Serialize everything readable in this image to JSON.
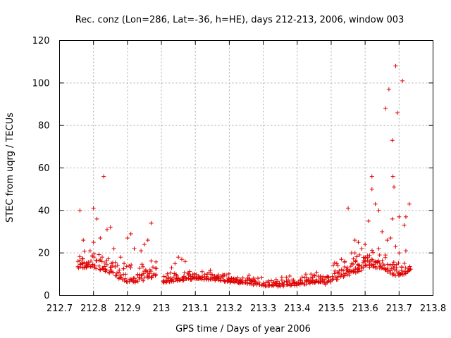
{
  "chart_data": {
    "type": "scatter",
    "title": "Rec. conz (Lon=286, Lat=-36, h=HE), days 212-213, 2006, window 003",
    "xlabel": "GPS time / Days of year 2006",
    "ylabel": "STEC from uqrg / TECUs",
    "xlim": [
      212.7,
      213.8
    ],
    "ylim": [
      0,
      120
    ],
    "xticks": [
      "212.7",
      "212.8",
      "212.9",
      "213",
      "213.1",
      "213.2",
      "213.3",
      "213.4",
      "213.5",
      "213.6",
      "213.7",
      "213.8"
    ],
    "yticks": [
      "0",
      "20",
      "40",
      "60",
      "80",
      "100",
      "120"
    ],
    "grid": true,
    "marker": "plus",
    "color": "#e00000",
    "series": [
      {
        "name": "STEC",
        "points": [
          [
            212.76,
            40
          ],
          [
            212.77,
            26
          ],
          [
            212.79,
            21
          ],
          [
            212.8,
            41
          ],
          [
            212.81,
            36
          ],
          [
            212.82,
            27
          ],
          [
            212.83,
            56
          ],
          [
            212.84,
            31
          ],
          [
            212.85,
            32
          ],
          [
            212.86,
            22
          ],
          [
            212.9,
            27
          ],
          [
            212.91,
            29
          ],
          [
            212.92,
            22
          ],
          [
            212.94,
            21
          ],
          [
            212.96,
            26
          ],
          [
            212.97,
            34
          ],
          [
            212.88,
            18
          ],
          [
            212.89,
            15
          ],
          [
            212.95,
            24
          ],
          [
            212.8,
            25
          ],
          [
            213.05,
            18
          ],
          [
            213.06,
            17
          ],
          [
            213.07,
            16
          ],
          [
            213.03,
            13
          ],
          [
            213.04,
            15
          ],
          [
            213.55,
            41
          ],
          [
            213.56,
            20
          ],
          [
            213.57,
            26
          ],
          [
            213.58,
            25
          ],
          [
            213.59,
            22
          ],
          [
            213.6,
            18
          ],
          [
            213.61,
            35
          ],
          [
            213.62,
            56
          ],
          [
            213.62,
            50
          ],
          [
            213.63,
            43
          ],
          [
            213.64,
            40
          ],
          [
            213.65,
            30
          ],
          [
            213.66,
            88
          ],
          [
            213.665,
            26
          ],
          [
            213.67,
            97
          ],
          [
            213.675,
            27
          ],
          [
            213.68,
            73
          ],
          [
            213.682,
            56
          ],
          [
            213.685,
            51
          ],
          [
            213.69,
            108
          ],
          [
            213.695,
            86
          ],
          [
            213.7,
            37
          ],
          [
            213.71,
            101
          ],
          [
            213.715,
            33
          ],
          [
            213.72,
            37
          ],
          [
            213.73,
            43
          ],
          [
            213.69,
            23
          ],
          [
            213.7,
            20
          ],
          [
            213.72,
            21
          ],
          [
            213.68,
            36
          ],
          [
            213.66,
            19
          ],
          [
            213.64,
            22
          ],
          [
            213.62,
            17
          ],
          [
            213.6,
            16
          ],
          [
            213.58,
            14
          ],
          [
            213.54,
            16
          ],
          [
            213.53,
            17
          ],
          [
            213.52,
            14
          ],
          [
            213.57,
            20
          ],
          [
            213.6,
            24
          ]
        ]
      }
    ]
  }
}
